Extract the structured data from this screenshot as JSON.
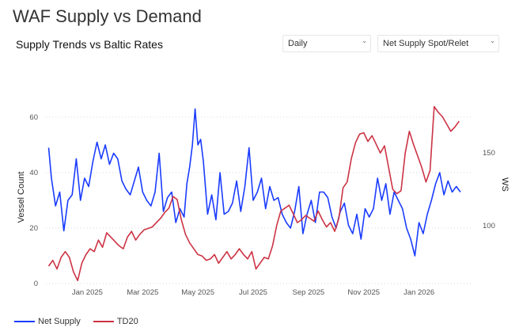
{
  "page": {
    "title": "WAF Supply vs Demand"
  },
  "panel": {
    "title": "Supply Trends vs Baltic Rates"
  },
  "controls": {
    "frequency": {
      "selected": "Daily"
    },
    "metric": {
      "selected": "Net Supply Spot/Relet"
    }
  },
  "chart_data": {
    "type": "line",
    "title": "Supply Trends vs Baltic Rates",
    "xlabel": "",
    "ylabel_left": "Vessel Count",
    "ylabel_right": "WS",
    "x_ticks": [
      "Jan 2025",
      "Mar 2025",
      "May 2025",
      "Jul 2025",
      "Sep 2025",
      "Nov 2025",
      "Jan 2026"
    ],
    "x_tick_positions": [
      1.5,
      3.5,
      5.5,
      7.5,
      9.5,
      11.5,
      13.5
    ],
    "y_left_ticks": [
      0,
      20,
      40,
      60
    ],
    "y_left_lim": [
      0,
      68
    ],
    "y_right_ticks": [
      100,
      150
    ],
    "y_right_lim": [
      60,
      190
    ],
    "x_lim": [
      0,
      15.4
    ],
    "grid": true,
    "legend_position": "bottom-left",
    "series": [
      {
        "name": "Net Supply",
        "axis": "left",
        "color": "#1a3cff",
        "x": [
          0.1,
          0.2,
          0.35,
          0.5,
          0.65,
          0.8,
          0.95,
          1.1,
          1.25,
          1.4,
          1.55,
          1.7,
          1.85,
          2.0,
          2.15,
          2.3,
          2.45,
          2.6,
          2.75,
          2.9,
          3.05,
          3.2,
          3.35,
          3.5,
          3.65,
          3.8,
          3.95,
          4.1,
          4.25,
          4.4,
          4.55,
          4.7,
          4.85,
          5.0,
          5.1,
          5.2,
          5.3,
          5.4,
          5.5,
          5.6,
          5.7,
          5.85,
          6.0,
          6.15,
          6.3,
          6.45,
          6.6,
          6.75,
          6.9,
          7.05,
          7.2,
          7.35,
          7.5,
          7.65,
          7.8,
          7.95,
          8.1,
          8.25,
          8.4,
          8.55,
          8.7,
          8.85,
          9.0,
          9.15,
          9.3,
          9.45,
          9.6,
          9.75,
          9.9,
          10.05,
          10.2,
          10.35,
          10.5,
          10.65,
          10.8,
          10.95,
          11.1,
          11.25,
          11.4,
          11.55,
          11.7,
          11.85,
          12.0,
          12.15,
          12.3,
          12.45,
          12.6,
          12.75,
          12.9,
          13.05,
          13.2,
          13.35,
          13.5,
          13.65,
          13.8,
          13.95,
          14.1,
          14.25,
          14.4,
          14.55,
          14.7,
          14.85,
          15.0
        ],
        "values": [
          49,
          38,
          28,
          33,
          19,
          30,
          32,
          45,
          30,
          38,
          35,
          44,
          51,
          45,
          50,
          43,
          47,
          45,
          37,
          34,
          32,
          37,
          42,
          33,
          30,
          28,
          33,
          47,
          26,
          31,
          33,
          22,
          27,
          24,
          36,
          42,
          50,
          63,
          50,
          52,
          44,
          25,
          32,
          23,
          40,
          25,
          26,
          29,
          37,
          26,
          35,
          49,
          30,
          33,
          38,
          27,
          35,
          30,
          31,
          25,
          22,
          20,
          26,
          35,
          18,
          25,
          30,
          22,
          33,
          33,
          31,
          24,
          20,
          26,
          29,
          21,
          18,
          25,
          16,
          27,
          24,
          27,
          38,
          30,
          36,
          25,
          33,
          30,
          27,
          20,
          16,
          10,
          22,
          18,
          25,
          30,
          36,
          40,
          32,
          37,
          33,
          35,
          33
        ]
      },
      {
        "name": "TD20",
        "axis": "right",
        "color": "#cc3344",
        "x": [
          0.1,
          0.25,
          0.4,
          0.55,
          0.7,
          0.85,
          1.0,
          1.15,
          1.3,
          1.45,
          1.6,
          1.75,
          1.9,
          2.05,
          2.2,
          2.35,
          2.5,
          2.65,
          2.8,
          2.95,
          3.1,
          3.25,
          3.4,
          3.55,
          3.7,
          3.85,
          4.0,
          4.15,
          4.3,
          4.45,
          4.6,
          4.75,
          4.9,
          5.05,
          5.2,
          5.35,
          5.5,
          5.65,
          5.8,
          5.95,
          6.1,
          6.25,
          6.4,
          6.55,
          6.7,
          6.85,
          7.0,
          7.15,
          7.3,
          7.45,
          7.6,
          7.75,
          7.9,
          8.05,
          8.2,
          8.35,
          8.5,
          8.65,
          8.8,
          8.95,
          9.1,
          9.25,
          9.4,
          9.55,
          9.7,
          9.85,
          10.0,
          10.15,
          10.3,
          10.45,
          10.6,
          10.75,
          10.9,
          11.05,
          11.2,
          11.35,
          11.5,
          11.65,
          11.8,
          11.95,
          12.1,
          12.25,
          12.4,
          12.55,
          12.7,
          12.85,
          13.0,
          13.15,
          13.3,
          13.45,
          13.6,
          13.75,
          13.9,
          14.05,
          14.2,
          14.35,
          14.5,
          14.65,
          14.8,
          14.95
        ],
        "values": [
          72,
          76,
          70,
          78,
          82,
          78,
          68,
          62,
          74,
          80,
          84,
          82,
          90,
          85,
          95,
          92,
          89,
          86,
          84,
          92,
          96,
          90,
          94,
          97,
          98,
          99,
          102,
          105,
          109,
          112,
          120,
          118,
          104,
          94,
          88,
          84,
          80,
          79,
          76,
          77,
          80,
          74,
          78,
          82,
          77,
          80,
          84,
          80,
          77,
          82,
          70,
          74,
          78,
          77,
          86,
          100,
          110,
          112,
          114,
          108,
          102,
          104,
          107,
          105,
          103,
          110,
          104,
          99,
          102,
          96,
          105,
          126,
          130,
          146,
          157,
          163,
          164,
          158,
          162,
          156,
          150,
          155,
          140,
          125,
          122,
          124,
          150,
          165,
          156,
          148,
          140,
          130,
          138,
          182,
          178,
          175,
          170,
          165,
          168,
          172
        ]
      }
    ]
  }
}
